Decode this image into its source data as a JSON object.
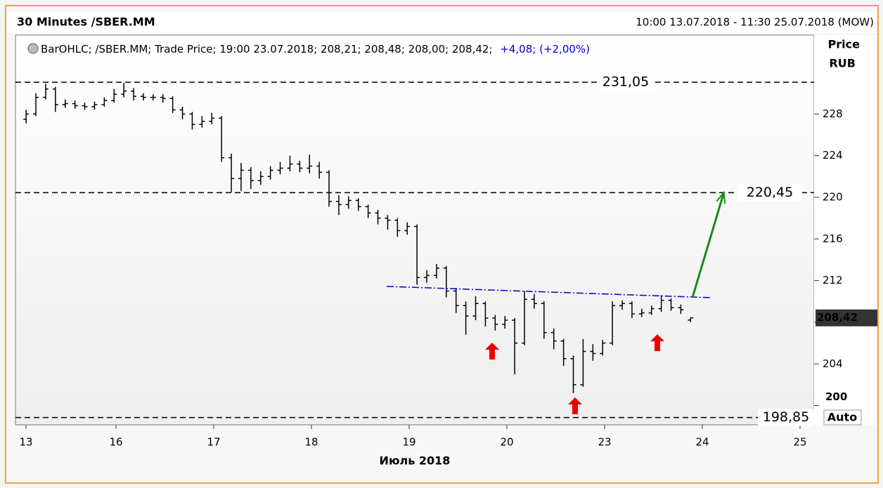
{
  "chart_data": {
    "type": "ohlc",
    "title": "30 Minutes /SBER.MM",
    "range": "10:00 13.07.2018 - 11:30 25.07.2018 (MOW)",
    "legend_text": "BarOHLC; /SBER.MM; Trade Price; 19:00 23.07.2018; 208,21; 208,48; 208,00; 208,42;",
    "legend_change": "+4,08; (+2,00%)",
    "y_axis_label": [
      "Price",
      "RUB"
    ],
    "x_axis_label": "Июль 2018",
    "auto_button": "Auto",
    "color": "#000000",
    "xlim": [
      -0.029,
      8.144
    ],
    "ylim": [
      198.15,
      231.87
    ],
    "xticks": [
      {
        "value": 0.079,
        "label": "13"
      },
      {
        "value": 1,
        "label": "16"
      },
      {
        "value": 2,
        "label": "17"
      },
      {
        "value": 3,
        "label": "18"
      },
      {
        "value": 4,
        "label": "19"
      },
      {
        "value": 5,
        "label": "20"
      },
      {
        "value": 6,
        "label": "23"
      },
      {
        "value": 7,
        "label": "24"
      },
      {
        "value": 8,
        "label": "25"
      }
    ],
    "yticks": [
      200,
      204,
      208,
      212,
      216,
      220,
      224,
      228
    ],
    "bars": {
      "x": [
        0.08,
        0.18,
        0.28,
        0.38,
        0.48,
        0.58,
        0.68,
        0.78,
        0.88,
        0.98,
        1.08,
        1.18,
        1.28,
        1.38,
        1.48,
        1.58,
        1.68,
        1.78,
        1.88,
        1.98,
        2.08,
        2.18,
        2.28,
        2.38,
        2.48,
        2.58,
        2.68,
        2.78,
        2.88,
        2.98,
        3.08,
        3.18,
        3.28,
        3.38,
        3.48,
        3.58,
        3.68,
        3.78,
        3.88,
        3.98,
        4.08,
        4.18,
        4.28,
        4.38,
        4.48,
        4.58,
        4.68,
        4.78,
        4.88,
        4.98,
        5.08,
        5.18,
        5.28,
        5.38,
        5.48,
        5.58,
        5.68,
        5.78,
        5.88,
        5.98,
        6.08,
        6.18,
        6.28,
        6.38,
        6.48,
        6.58,
        6.68,
        6.78,
        6.88
      ],
      "open": [
        227.5,
        228.0,
        229.6,
        230.4,
        228.9,
        229.0,
        228.8,
        228.7,
        228.9,
        229.3,
        229.9,
        230.2,
        229.7,
        229.6,
        229.6,
        229.5,
        228.4,
        228.0,
        227.0,
        227.3,
        227.6,
        223.8,
        221.8,
        222.6,
        221.6,
        222.0,
        222.6,
        222.8,
        223.2,
        222.8,
        223.0,
        222.4,
        219.6,
        219.3,
        219.7,
        219.1,
        218.5,
        218.0,
        217.8,
        216.8,
        217.2,
        212.3,
        212.5,
        213.2,
        211.0,
        209.6,
        208.6,
        209.8,
        208.4,
        207.8,
        208.2,
        206.0,
        210.2,
        209.8,
        207.0,
        206.2,
        204.5,
        202.0,
        205.2,
        205.0,
        206.0,
        209.6,
        209.8,
        208.8,
        208.9,
        209.3,
        210.1,
        209.4,
        208.21
      ],
      "high": [
        228.4,
        230.0,
        230.9,
        230.6,
        229.4,
        229.3,
        229.1,
        229.2,
        229.6,
        230.4,
        231.0,
        230.5,
        230.0,
        229.9,
        229.9,
        229.7,
        228.7,
        228.2,
        227.8,
        228.1,
        227.8,
        224.2,
        223.3,
        222.9,
        222.5,
        223.0,
        223.4,
        224.0,
        223.5,
        224.1,
        223.4,
        222.6,
        220.2,
        220.1,
        219.9,
        219.3,
        218.8,
        218.3,
        218.0,
        217.6,
        217.4,
        213.0,
        213.6,
        213.4,
        211.3,
        210.0,
        210.5,
        210.0,
        208.7,
        208.6,
        208.4,
        211.0,
        210.7,
        210.0,
        207.4,
        206.4,
        204.8,
        206.4,
        205.9,
        206.3,
        210.0,
        210.1,
        210.0,
        209.3,
        209.6,
        210.6,
        210.3,
        209.7,
        208.48
      ],
      "low": [
        227.1,
        227.8,
        229.4,
        228.2,
        228.6,
        228.5,
        228.4,
        228.4,
        228.7,
        229.1,
        229.6,
        229.3,
        229.3,
        229.3,
        229.1,
        228.1,
        227.5,
        226.5,
        226.7,
        227.0,
        223.4,
        220.5,
        220.6,
        220.8,
        221.2,
        221.7,
        222.2,
        222.5,
        222.4,
        222.3,
        221.8,
        219.1,
        218.3,
        218.9,
        218.7,
        218.0,
        217.4,
        216.9,
        216.2,
        216.4,
        211.6,
        211.8,
        212.2,
        210.4,
        208.9,
        206.8,
        208.2,
        207.6,
        207.2,
        207.4,
        203.0,
        205.8,
        209.3,
        206.4,
        205.4,
        203.8,
        201.2,
        201.8,
        204.3,
        204.8,
        205.8,
        209.2,
        208.4,
        208.5,
        208.7,
        209.0,
        209.1,
        208.8,
        208.0
      ],
      "close": [
        228.0,
        229.6,
        230.4,
        228.9,
        229.0,
        228.8,
        228.7,
        228.9,
        229.3,
        229.9,
        230.2,
        229.7,
        229.6,
        229.6,
        229.5,
        228.4,
        228.0,
        227.0,
        227.3,
        227.6,
        223.8,
        221.8,
        222.6,
        221.6,
        222.0,
        222.6,
        222.8,
        223.2,
        222.8,
        223.0,
        222.4,
        219.6,
        219.3,
        219.7,
        219.1,
        218.5,
        218.0,
        217.8,
        216.8,
        217.2,
        212.3,
        212.5,
        213.2,
        211.0,
        209.6,
        208.6,
        209.8,
        208.4,
        207.8,
        208.2,
        206.0,
        210.2,
        209.8,
        207.0,
        206.2,
        204.5,
        202.0,
        205.2,
        205.0,
        206.0,
        209.6,
        209.8,
        208.8,
        208.9,
        209.3,
        210.1,
        209.4,
        209.2,
        208.42
      ]
    },
    "levels": [
      {
        "value": 231.05,
        "label": "231,05"
      },
      {
        "value": 220.45,
        "label": "220,45"
      },
      {
        "value": 198.85,
        "label": "198,85"
      }
    ],
    "trend_line": {
      "x": [
        3.77,
        7.09
      ],
      "y": [
        211.44,
        210.36
      ],
      "color": "#0000cc"
    },
    "target_arrow": {
      "x": [
        6.9,
        7.22
      ],
      "y": [
        210.4,
        220.45
      ],
      "color": "#1a8a1a"
    },
    "last_price": {
      "value": 208.42,
      "label": "208,42"
    }
  }
}
